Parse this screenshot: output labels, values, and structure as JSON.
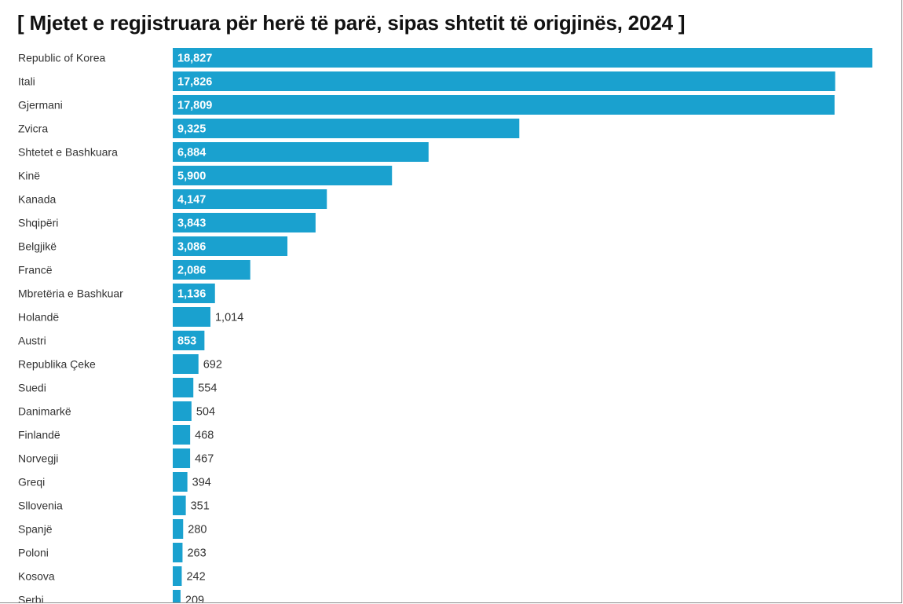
{
  "chart_data": {
    "type": "bar",
    "orientation": "horizontal",
    "title": "[ Mjetet e regjistruara për herë të parë, sipas shtetit të origjinës, 2024 ]",
    "bar_color": "#1aa1cf",
    "categories": [
      "Republic of Korea",
      "Itali",
      "Gjermani",
      "Zvicra",
      "Shtetet e Bashkuara",
      "Kinë",
      "Kanada",
      "Shqipëri",
      "Belgjikë",
      "Francë",
      "Mbretëria e Bashkuar",
      "Holandë",
      "Austri",
      "Republika Çeke",
      "Suedi",
      "Danimarkë",
      "Finlandë",
      "Norvegji",
      "Greqi",
      "Sllovenia",
      "Spanjë",
      "Poloni",
      "Kosova",
      "Serbi"
    ],
    "values": [
      18827,
      17826,
      17809,
      9325,
      6884,
      5900,
      4147,
      3843,
      3086,
      2086,
      1136,
      1014,
      853,
      692,
      554,
      504,
      468,
      467,
      394,
      351,
      280,
      263,
      242,
      209
    ],
    "data_labels": [
      "18,827",
      "17,826",
      "17,809",
      "9,325",
      "6,884",
      "5,900",
      "4,147",
      "3,843",
      "3,086",
      "2,086",
      "1,136",
      "1,014",
      "853",
      "692",
      "554",
      "504",
      "468",
      "467",
      "394",
      "351",
      "280",
      "263",
      "242",
      "209"
    ],
    "label_inside": [
      true,
      true,
      true,
      true,
      true,
      true,
      true,
      true,
      true,
      true,
      true,
      false,
      true,
      false,
      false,
      false,
      false,
      false,
      false,
      false,
      false,
      false,
      false,
      false
    ],
    "xlim": [
      0,
      18827
    ],
    "grid": false,
    "xlabel": "",
    "ylabel": ""
  }
}
